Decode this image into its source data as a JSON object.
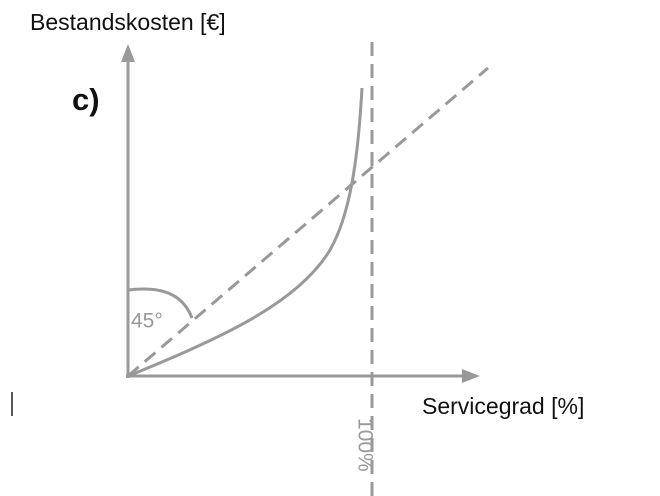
{
  "axes": {
    "y_label": "Bestandskosten [€]",
    "x_label": "Servicegrad [%]"
  },
  "panel_label": "c)",
  "angle_label": "45°",
  "limit_label": "100%"
}
